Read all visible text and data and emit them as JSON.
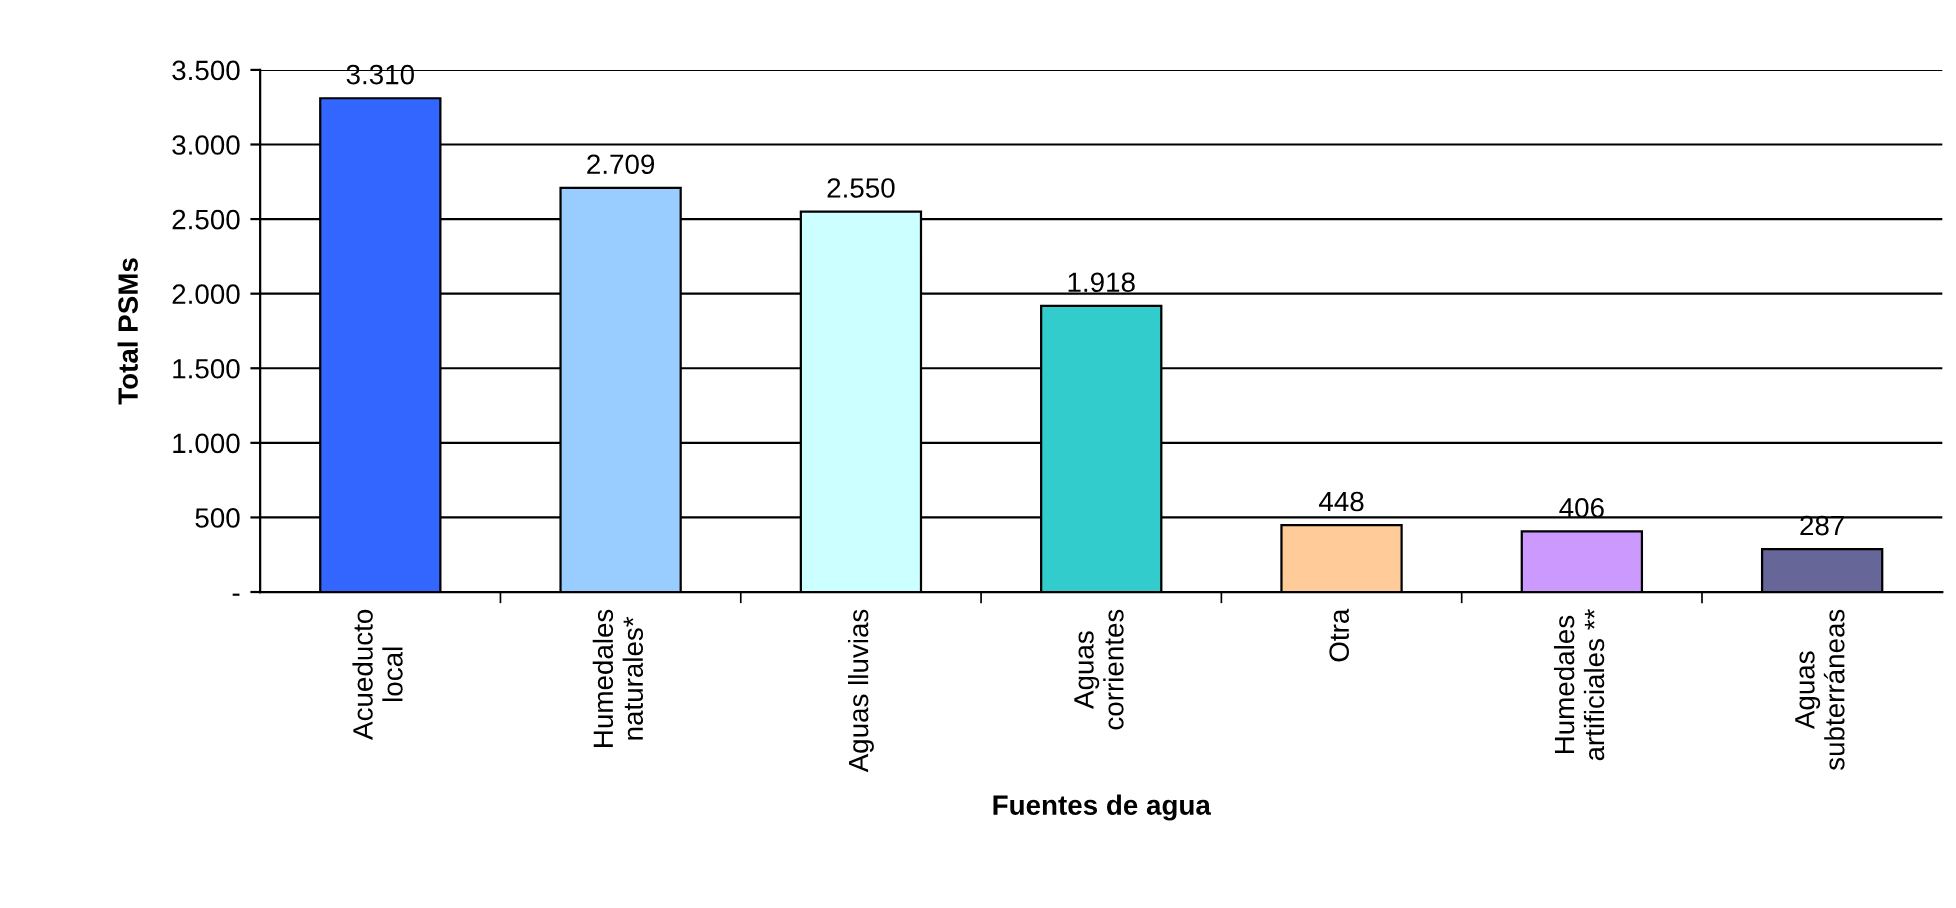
{
  "chart_data": {
    "type": "bar",
    "xlabel": "Fuentes de agua",
    "ylabel": "Total PSMs",
    "categories": [
      "Acueducto\nlocal",
      "Humedales\nnaturales*",
      "Aguas lluvias",
      "Aguas\ncorrientes",
      "Otra",
      "Humedales\nartificiales **",
      "Aguas\nsubterráneas"
    ],
    "values": [
      3310,
      2709,
      2550,
      1918,
      448,
      406,
      287
    ],
    "value_labels": [
      "3.310",
      "2.709",
      "2.550",
      "1.918",
      "448",
      "406",
      "287"
    ],
    "colors": [
      "#3366ff",
      "#99ccff",
      "#ccffff",
      "#33cccc",
      "#ffcc99",
      "#cc99ff",
      "#666699"
    ],
    "ylim": [
      0,
      3500
    ],
    "yticks": [
      {
        "value": 0,
        "label": "-"
      },
      {
        "value": 500,
        "label": "500"
      },
      {
        "value": 1000,
        "label": "1.000"
      },
      {
        "value": 1500,
        "label": "1.500"
      },
      {
        "value": 2000,
        "label": "2.000"
      },
      {
        "value": 2500,
        "label": "2.500"
      },
      {
        "value": 3000,
        "label": "3.000"
      },
      {
        "value": 3500,
        "label": "3.500"
      }
    ],
    "grid": "y",
    "legend": false
  }
}
